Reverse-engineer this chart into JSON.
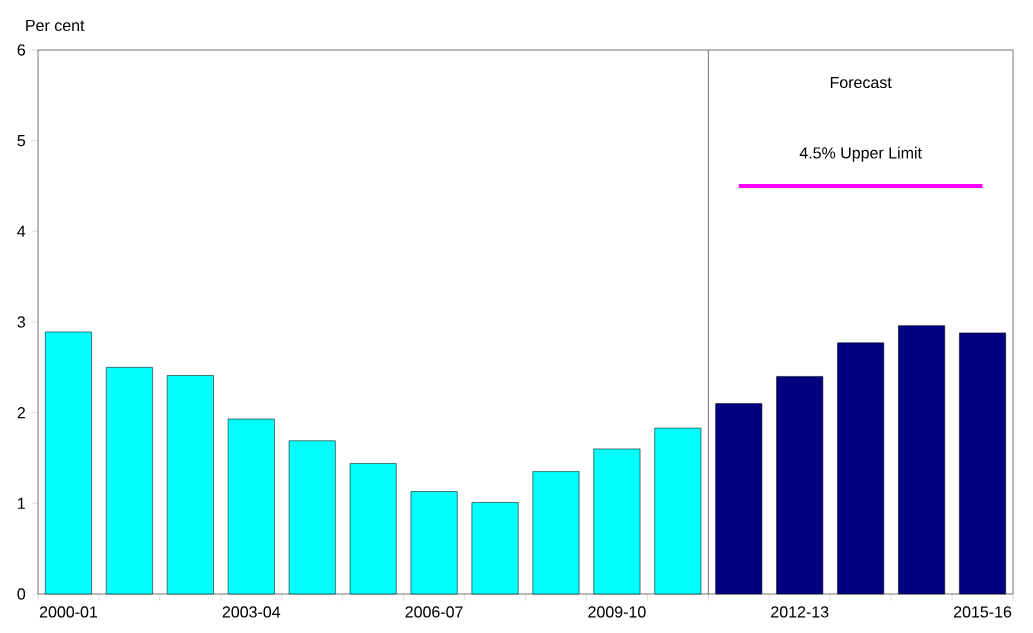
{
  "chart_data": {
    "type": "bar",
    "ylabel": "Per cent",
    "categories": [
      "2000-01",
      null,
      null,
      "2003-04",
      null,
      null,
      "2006-07",
      null,
      null,
      "2009-10",
      null,
      null,
      "2012-13",
      null,
      null,
      "2015-16"
    ],
    "series": [
      {
        "colors": [
          "#00ffff",
          "#00ffff",
          "#00ffff",
          "#00ffff",
          "#00ffff",
          "#00ffff",
          "#00ffff",
          "#00ffff",
          "#00ffff",
          "#00ffff",
          "#00ffff",
          "#000080",
          "#000080",
          "#000080",
          "#000080",
          "#000080"
        ],
        "values": [
          2.89,
          2.5,
          2.41,
          1.93,
          1.69,
          1.44,
          1.13,
          1.01,
          1.35,
          1.6,
          1.83,
          2.1,
          2.4,
          2.77,
          2.96,
          2.88
        ]
      },
      {
        "type": "line",
        "name": "4.5% Upper Limit",
        "color": "#ff00ff",
        "values": [
          null,
          null,
          null,
          null,
          null,
          null,
          null,
          null,
          null,
          null,
          null,
          4.5,
          4.5,
          4.5,
          4.5,
          4.5
        ]
      }
    ],
    "ylim": [
      0,
      6
    ],
    "yticks": [
      0,
      1,
      2,
      3,
      4,
      5,
      6
    ],
    "annotations": [
      "Forecast"
    ]
  }
}
